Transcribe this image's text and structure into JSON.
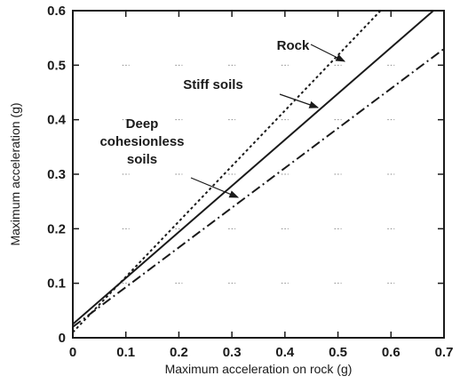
{
  "chart_data": {
    "type": "line",
    "xlabel": "Maximum acceleration on rock (g)",
    "ylabel": "Maximum acceleration (g)",
    "xlim": [
      0,
      0.7
    ],
    "ylim": [
      0,
      0.6
    ],
    "x_ticks": [
      "0",
      "0.1",
      "0.2",
      "0.3",
      "0.4",
      "0.5",
      "0.6",
      "0.7"
    ],
    "y_ticks": [
      "0",
      "0.1",
      "0.2",
      "0.3",
      "0.4",
      "0.5",
      "0.6"
    ],
    "grid": false,
    "series": [
      {
        "name": "Rock",
        "style": "dotted",
        "x": [
          0,
          0.6
        ],
        "y": [
          0.01,
          0.62
        ]
      },
      {
        "name": "Stiff soils",
        "style": "solid",
        "x": [
          0,
          0.68
        ],
        "y": [
          0.025,
          0.6
        ]
      },
      {
        "name": "Deep cohesionless soils",
        "style": "dash-dot",
        "x": [
          0,
          0.7
        ],
        "y": [
          0.02,
          0.53
        ]
      }
    ],
    "annotations": [
      {
        "lines": [
          "Rock"
        ],
        "points_to": "Rock"
      },
      {
        "lines": [
          "Stiff soils"
        ],
        "points_to": "Stiff soils"
      },
      {
        "lines": [
          "Deep",
          "cohesionless",
          "soils"
        ],
        "points_to": "Deep cohesionless soils"
      }
    ]
  }
}
